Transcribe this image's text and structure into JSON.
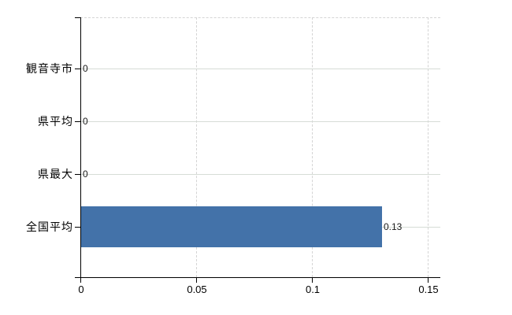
{
  "chart_data": {
    "type": "bar",
    "orientation": "horizontal",
    "title": "",
    "xlabel": "",
    "ylabel": "",
    "categories": [
      "観音寺市",
      "県平均",
      "県最大",
      "全国平均"
    ],
    "values": [
      0,
      0,
      0,
      0.13
    ],
    "value_labels": [
      "0",
      "0",
      "0",
      "0.13"
    ],
    "xticks": [
      {
        "value": 0,
        "label": "0"
      },
      {
        "value": 0.05,
        "label": "0.05"
      },
      {
        "value": 0.1,
        "label": "0.1"
      },
      {
        "value": 0.15,
        "label": "0.15"
      }
    ],
    "xlim": [
      0,
      0.155
    ],
    "grid": true,
    "legend": false,
    "colors": {
      "bar": "#4372a9",
      "h_gridline": "#d6dcd6",
      "v_gridline": "#d4d4d4",
      "axis": "#000000",
      "text": "#000000",
      "background": "#ffffff"
    }
  }
}
